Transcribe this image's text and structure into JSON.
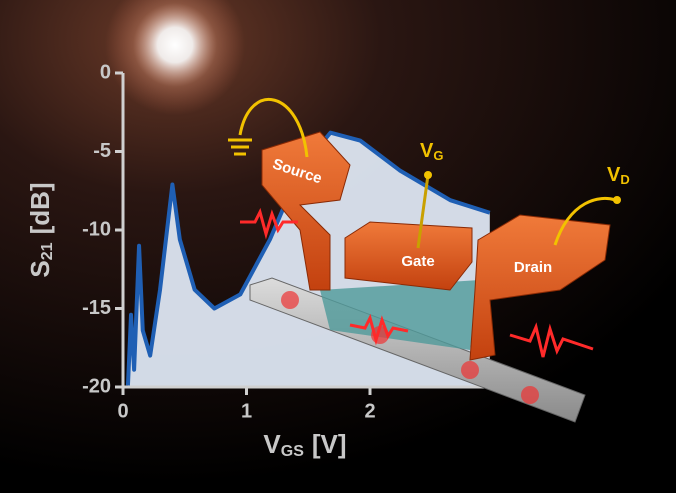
{
  "chart_data": {
    "type": "line",
    "y_label": {
      "main": "S",
      "sub": "21",
      "unit": "[dB]"
    },
    "x_label": {
      "main": "V",
      "sub": "GS",
      "unit": "[V]"
    },
    "x": [
      0.04,
      0.065,
      0.09,
      0.13,
      0.16,
      0.22,
      0.3,
      0.4,
      0.46,
      0.58,
      0.74,
      0.95,
      1.19,
      1.43,
      1.68,
      1.92,
      2.24,
      2.65,
      2.97
    ],
    "series": [
      {
        "color": "#1f5fb4",
        "values": [
          -19.9,
          -15.4,
          -18.9,
          -11,
          -16.4,
          -18,
          -13.8,
          -7.1,
          -10.6,
          -13.8,
          -15,
          -14.1,
          -10.6,
          -6.2,
          -3.8,
          -4.3,
          -6.2,
          -8.1,
          -8.9
        ]
      }
    ],
    "xlim": [
      0,
      3
    ],
    "xticks": [
      0,
      1,
      2
    ],
    "ylim": [
      -20,
      0
    ],
    "yticks": [
      0,
      -5,
      -10,
      -15,
      -20
    ],
    "annotations": {
      "source": "Source",
      "gate": "Gate",
      "drain": "Drain",
      "vg": {
        "main": "V",
        "sub": "G"
      },
      "vd": {
        "main": "V",
        "sub": "D"
      }
    }
  }
}
